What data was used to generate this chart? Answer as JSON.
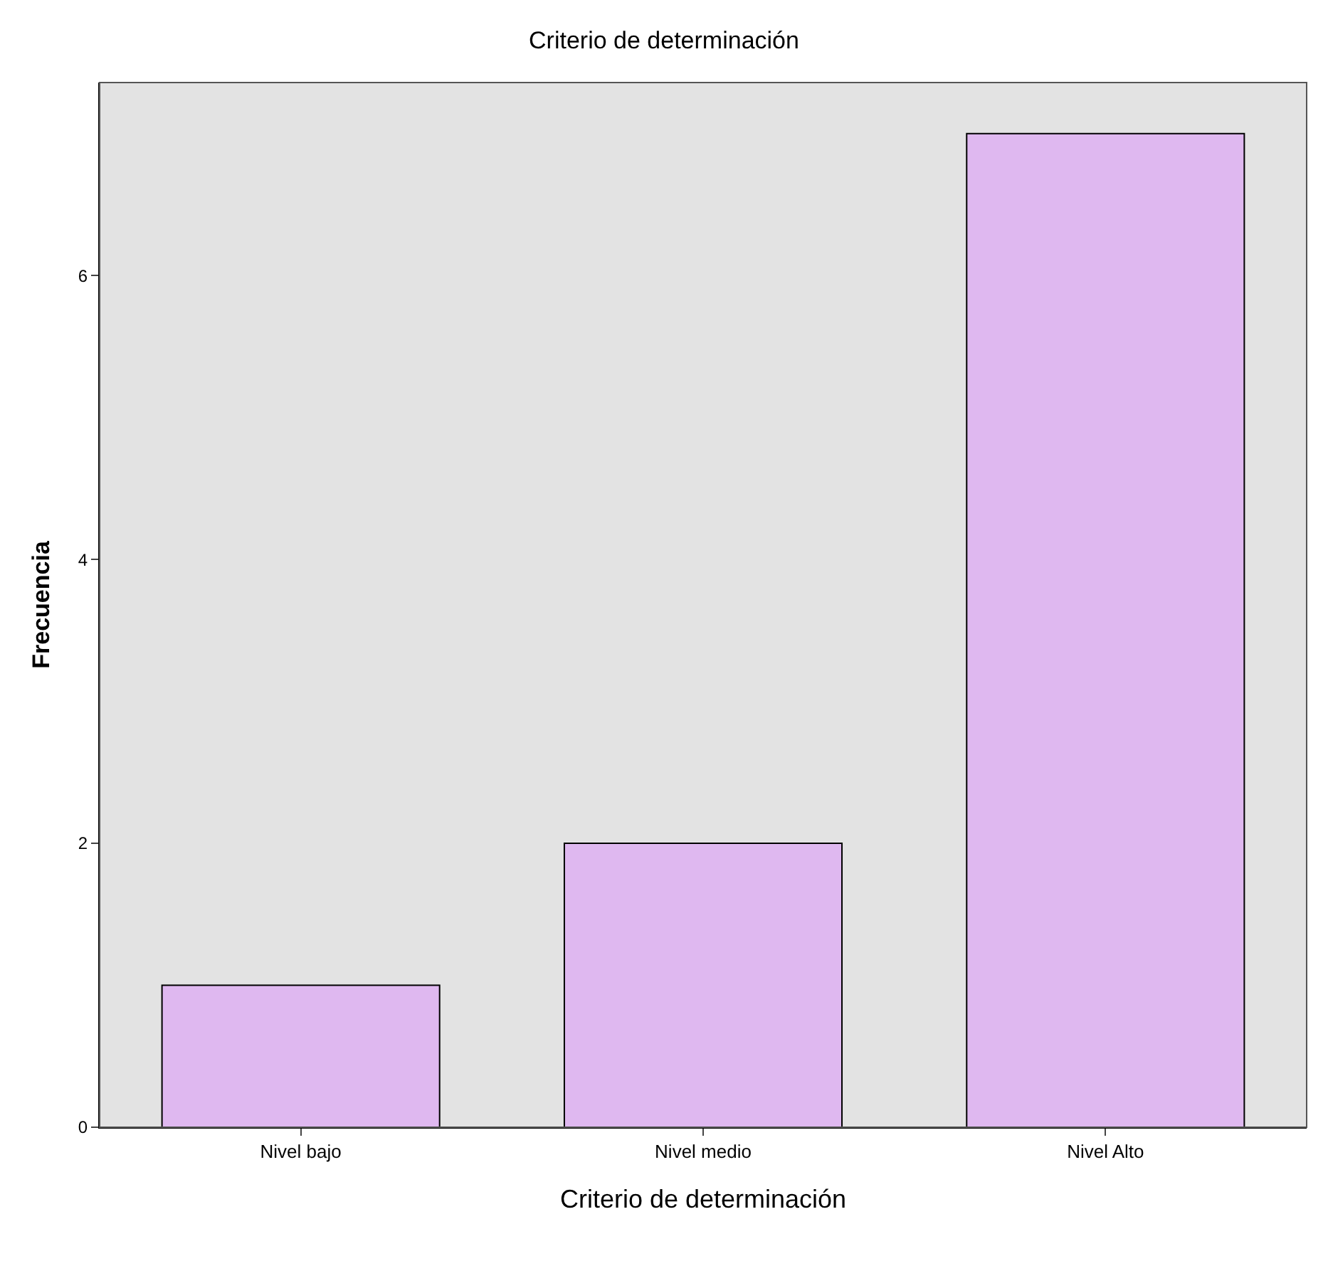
{
  "chart_data": {
    "type": "bar",
    "title": "Criterio de determinación",
    "xlabel": "Criterio de determinación",
    "ylabel": "Frecuencia",
    "categories": [
      "Nivel bajo",
      "Nivel medio",
      "Nivel Alto"
    ],
    "values": [
      1,
      2,
      7
    ],
    "color": "#dfb8f0",
    "ylim": [
      0,
      7.36
    ],
    "yticks": [
      0,
      2,
      4,
      6
    ],
    "grid": false,
    "legend": false
  }
}
